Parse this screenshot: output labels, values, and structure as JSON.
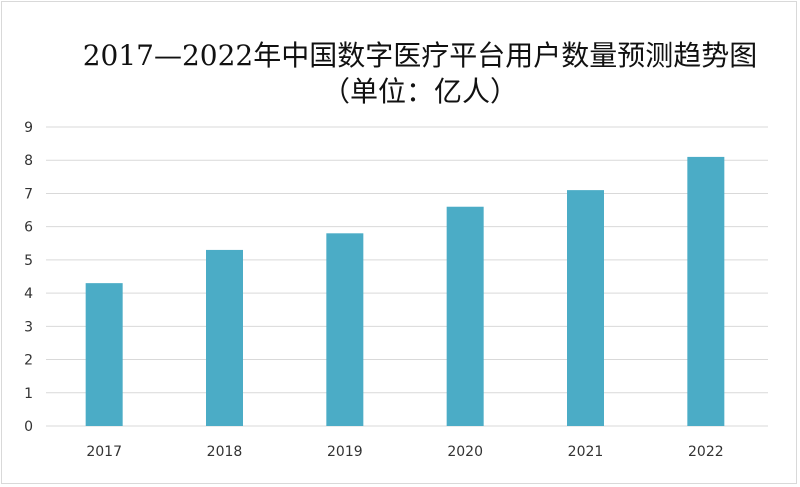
{
  "chart_data": {
    "type": "bar",
    "title": "2017—2022年中国数字医疗平台用户数量预测趋势图（单位：亿人）",
    "categories": [
      "2017",
      "2018",
      "2019",
      "2020",
      "2021",
      "2022"
    ],
    "values": [
      4.3,
      5.3,
      5.8,
      6.6,
      7.1,
      8.1
    ],
    "ylim": [
      0,
      9
    ],
    "yticks": [
      0,
      1,
      2,
      3,
      4,
      5,
      6,
      7,
      8,
      9
    ],
    "xlabel": "",
    "ylabel": "",
    "grid": true,
    "legend": "none",
    "bar_color": "#4bacc6",
    "grid_color": "#d9d9d9"
  }
}
